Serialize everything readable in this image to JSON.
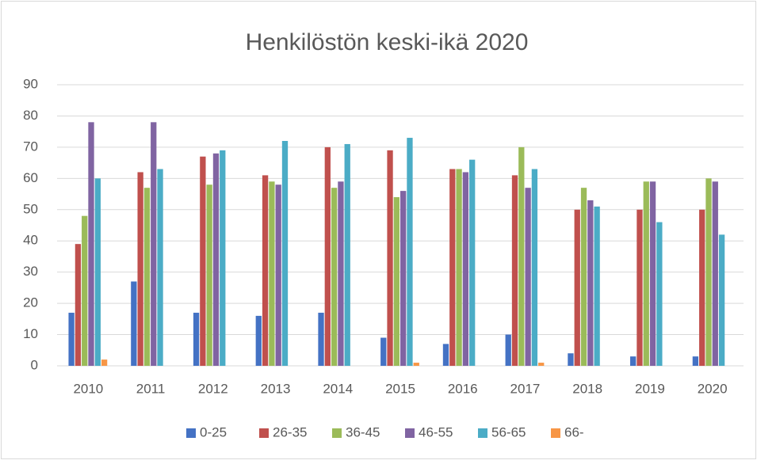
{
  "chart_data": {
    "type": "bar",
    "title": "Henkilöstön keski-ikä 2020",
    "categories": [
      "2010",
      "2011",
      "2012",
      "2013",
      "2014",
      "2015",
      "2016",
      "2017",
      "2018",
      "2019",
      "2020"
    ],
    "series": [
      {
        "name": "0-25",
        "color": "#4472c4",
        "values": [
          17,
          27,
          17,
          16,
          17,
          9,
          7,
          10,
          4,
          3,
          3
        ]
      },
      {
        "name": "26-35",
        "color": "#c0504d",
        "values": [
          39,
          62,
          67,
          61,
          70,
          69,
          63,
          61,
          50,
          50,
          50
        ]
      },
      {
        "name": "36-45",
        "color": "#9bbb59",
        "values": [
          48,
          57,
          58,
          59,
          57,
          54,
          63,
          70,
          57,
          59,
          60
        ]
      },
      {
        "name": "46-55",
        "color": "#8064a2",
        "values": [
          78,
          78,
          68,
          58,
          59,
          56,
          62,
          57,
          53,
          59,
          59
        ]
      },
      {
        "name": "56-65",
        "color": "#4bacc6",
        "values": [
          60,
          63,
          69,
          72,
          71,
          73,
          66,
          63,
          51,
          46,
          42
        ]
      },
      {
        "name": "66-",
        "color": "#f79646",
        "values": [
          2,
          0,
          0,
          0,
          0,
          1,
          0,
          1,
          0,
          0,
          0
        ]
      }
    ],
    "ylim": [
      0,
      90
    ],
    "yticks": [
      0,
      10,
      20,
      30,
      40,
      50,
      60,
      70,
      80,
      90
    ],
    "grid": true,
    "legend": "bottom"
  }
}
